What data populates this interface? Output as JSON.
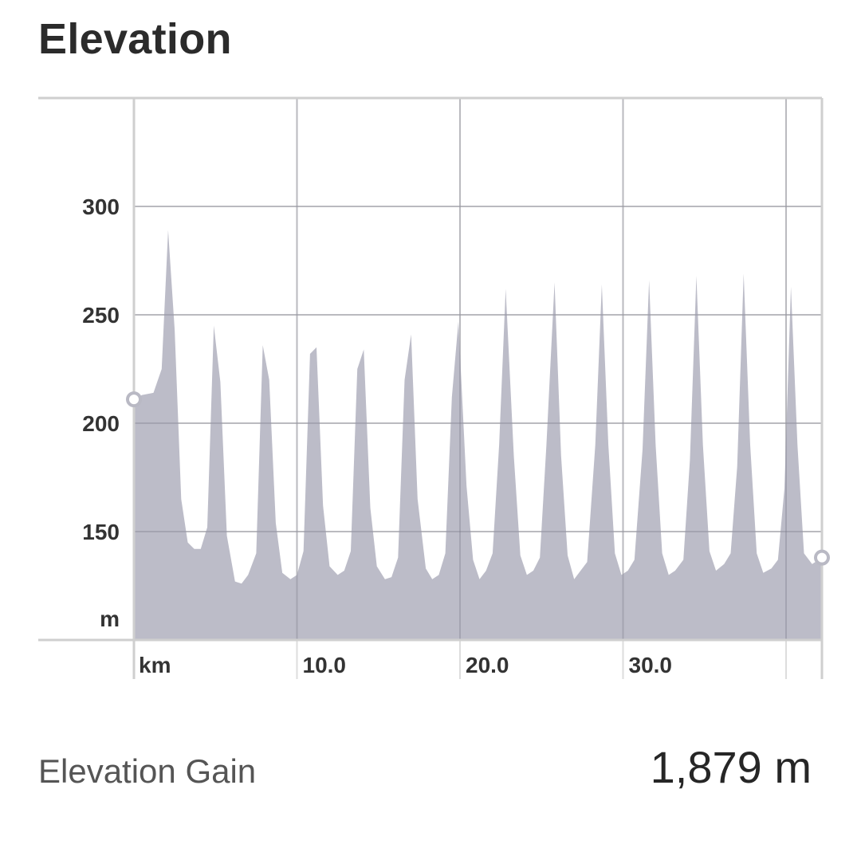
{
  "header": {
    "title": "Elevation"
  },
  "chart_data": {
    "type": "area",
    "title": "Elevation",
    "x_unit_label": "km",
    "y_unit_label": "m",
    "xlim": [
      0,
      42.2
    ],
    "ylim": [
      100,
      350
    ],
    "y_ticks": [
      150,
      200,
      250,
      300
    ],
    "x_ticks": [
      10,
      20,
      30
    ],
    "x_tick_labels": [
      "10.0",
      "20.0",
      "30.0"
    ],
    "grid": true,
    "fill_color": "#bcbcc8",
    "start_marker_elevation": 211,
    "end_marker_elevation": 138,
    "series": [
      {
        "x": [
          0,
          0.5,
          1.2,
          1.7,
          2.1,
          2.5,
          2.9,
          3.3,
          3.7,
          4.1,
          4.5,
          4.9,
          5.3,
          5.7,
          6.2,
          6.6,
          7.0,
          7.5,
          7.9,
          8.3,
          8.7,
          9.1,
          9.6,
          10.0,
          10.4,
          10.8,
          11.2,
          11.6,
          12.0,
          12.5,
          12.9,
          13.3,
          13.7,
          14.1,
          14.5,
          14.9,
          15.4,
          15.8,
          16.2,
          16.6,
          17.0,
          17.4,
          17.9,
          18.3,
          18.7,
          19.1,
          19.5,
          19.9,
          20.4,
          20.8,
          21.2,
          21.6,
          22.0,
          22.4,
          22.8,
          23.3,
          23.7,
          24.1,
          24.5,
          24.9,
          25.3,
          25.8,
          26.2,
          26.6,
          27.0,
          27.4,
          27.8,
          28.3,
          28.7,
          29.1,
          29.5,
          29.9,
          30.3,
          30.7,
          31.2,
          31.6,
          32.0,
          32.4,
          32.8,
          33.2,
          33.7,
          34.1,
          34.5,
          34.9,
          35.3,
          35.7,
          36.2,
          36.6,
          37.0,
          37.4,
          37.8,
          38.2,
          38.6,
          39.1,
          39.5,
          39.9,
          40.3,
          40.7,
          41.1,
          41.6,
          42.2
        ],
        "y": [
          211,
          213,
          214,
          225,
          289,
          243,
          165,
          145,
          142,
          142,
          152,
          245,
          219,
          148,
          127,
          126,
          130,
          140,
          236,
          220,
          154,
          131,
          128,
          130,
          141,
          232,
          235,
          162,
          134,
          130,
          132,
          141,
          225,
          234,
          161,
          134,
          128,
          129,
          138,
          220,
          241,
          165,
          133,
          128,
          130,
          140,
          212,
          247,
          171,
          137,
          128,
          132,
          140,
          190,
          262,
          185,
          139,
          130,
          132,
          138,
          190,
          265,
          185,
          139,
          128,
          132,
          136,
          190,
          264,
          190,
          140,
          130,
          132,
          137,
          188,
          266,
          190,
          140,
          130,
          132,
          137,
          183,
          268,
          190,
          141,
          132,
          135,
          140,
          180,
          269,
          190,
          140,
          131,
          133,
          137,
          170,
          263,
          190,
          140,
          135,
          138
        ]
      }
    ]
  },
  "summary": {
    "label": "Elevation Gain",
    "value": "1,879 m"
  }
}
